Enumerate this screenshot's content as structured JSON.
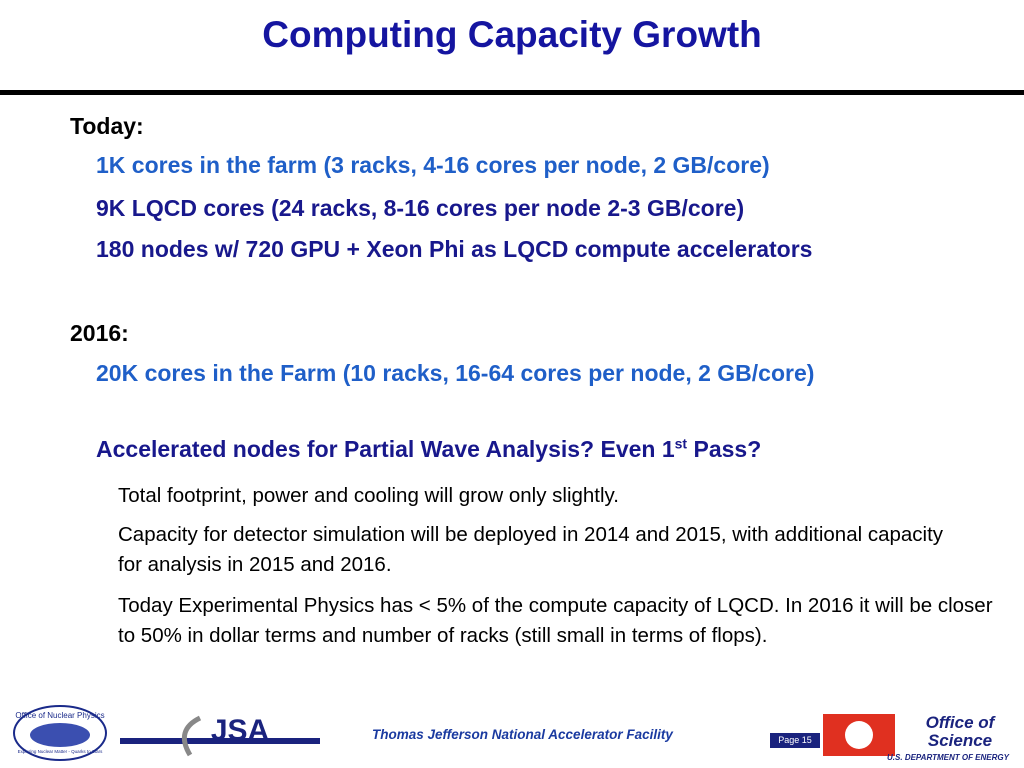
{
  "header": {
    "title": "Computing Capacity Growth"
  },
  "sections": [
    {
      "heading": "Today:",
      "items": [
        {
          "text": "1K cores in the farm (3 racks, 4-16 cores per node, 2 GB/core)"
        },
        {
          "text": "9K LQCD cores (24 racks, 8-16 cores per node 2-3 GB/core)"
        },
        {
          "text": "180 nodes w/ 720 GPU + Xeon Phi as LQCD compute accelerators"
        }
      ]
    },
    {
      "heading": "2016:",
      "items": [
        {
          "text": "20K cores in the Farm (10 racks, 16-64 cores per node, 2 GB/core)"
        },
        {
          "text": "Accelerated nodes for Partial Wave Analysis?  Even 1",
          "sup": "st",
          "tail": " Pass?"
        }
      ]
    }
  ],
  "notes": [
    "Total footprint, power and cooling will grow only slightly.",
    "Capacity for detector simulation will be deployed in 2014 and 2015, with additional capacity for analysis in 2015 and 2016.",
    "Today Experimental Physics has < 5% of the compute capacity of LQCD.  In 2016 it will be closer to 50% in dollar terms and number of racks (still small in terms of flops)."
  ],
  "footer": {
    "lab": "Thomas Jefferson National Accelerator Facility",
    "page": "Page 15",
    "logos": {
      "nuclear": "Office of Nuclear Physics",
      "nuclear_motto": "Exploring Nuclear Matter - Quarks to Stars",
      "jsa": "JSA",
      "science_1": "Office of",
      "science_2": "Science",
      "doe": "U.S. DEPARTMENT OF ENERGY"
    }
  }
}
